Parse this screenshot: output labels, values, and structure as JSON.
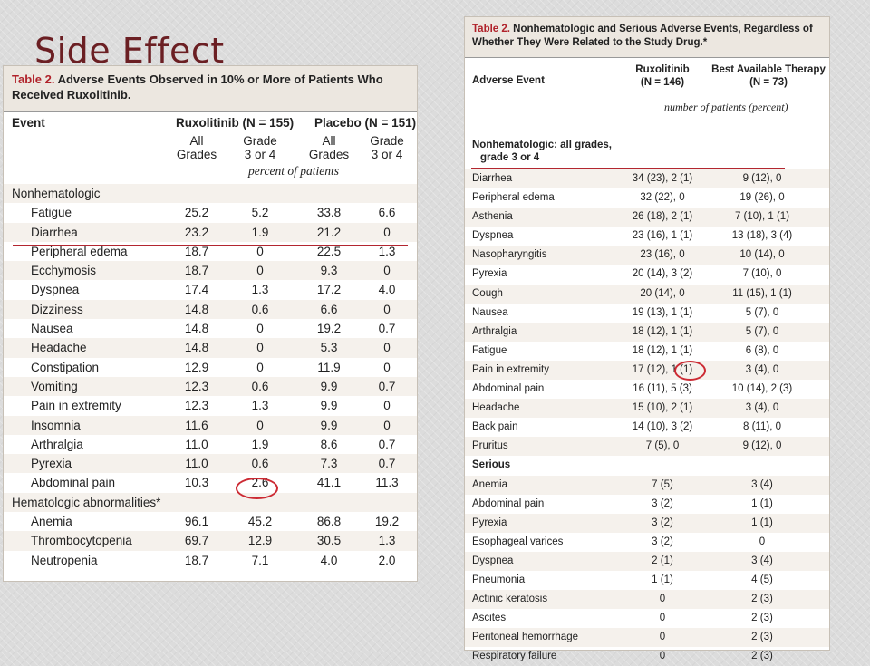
{
  "slide": {
    "title": "Side Effect"
  },
  "table1": {
    "number": "Table 2.",
    "caption": "Adverse Events Observed in 10% or More of Patients Who Received Ruxolitinib.",
    "col_event": "Event",
    "group1": "Ruxolitinib (N = 155)",
    "group2": "Placebo (N = 151)",
    "sub_all_1": "All",
    "sub_all_2": "Grades",
    "sub_g_1": "Grade",
    "sub_g_2": "3 or 4",
    "unit": "percent of patients",
    "section1": "Nonhematologic",
    "section2": "Hematologic abnormalities*",
    "nonhem": [
      {
        "event": "Fatigue",
        "v": [
          "25.2",
          "5.2",
          "33.8",
          "6.6"
        ]
      },
      {
        "event": "Diarrhea",
        "v": [
          "23.2",
          "1.9",
          "21.2",
          "0"
        ]
      },
      {
        "event": "Peripheral edema",
        "v": [
          "18.7",
          "0",
          "22.5",
          "1.3"
        ]
      },
      {
        "event": "Ecchymosis",
        "v": [
          "18.7",
          "0",
          "9.3",
          "0"
        ]
      },
      {
        "event": "Dyspnea",
        "v": [
          "17.4",
          "1.3",
          "17.2",
          "4.0"
        ]
      },
      {
        "event": "Dizziness",
        "v": [
          "14.8",
          "0.6",
          "6.6",
          "0"
        ]
      },
      {
        "event": "Nausea",
        "v": [
          "14.8",
          "0",
          "19.2",
          "0.7"
        ]
      },
      {
        "event": "Headache",
        "v": [
          "14.8",
          "0",
          "5.3",
          "0"
        ]
      },
      {
        "event": "Constipation",
        "v": [
          "12.9",
          "0",
          "11.9",
          "0"
        ]
      },
      {
        "event": "Vomiting",
        "v": [
          "12.3",
          "0.6",
          "9.9",
          "0.7"
        ]
      },
      {
        "event": "Pain in extremity",
        "v": [
          "12.3",
          "1.3",
          "9.9",
          "0"
        ]
      },
      {
        "event": "Insomnia",
        "v": [
          "11.6",
          "0",
          "9.9",
          "0"
        ]
      },
      {
        "event": "Arthralgia",
        "v": [
          "11.0",
          "1.9",
          "8.6",
          "0.7"
        ]
      },
      {
        "event": "Pyrexia",
        "v": [
          "11.0",
          "0.6",
          "7.3",
          "0.7"
        ]
      },
      {
        "event": "Abdominal pain",
        "v": [
          "10.3",
          "2.6",
          "41.1",
          "11.3"
        ]
      }
    ],
    "hem": [
      {
        "event": "Anemia",
        "v": [
          "96.1",
          "45.2",
          "86.8",
          "19.2"
        ]
      },
      {
        "event": "Thrombocytopenia",
        "v": [
          "69.7",
          "12.9",
          "30.5",
          "1.3"
        ]
      },
      {
        "event": "Neutropenia",
        "v": [
          "18.7",
          "7.1",
          "4.0",
          "2.0"
        ]
      }
    ]
  },
  "table2": {
    "number": "Table 2.",
    "caption": "Nonhematologic and Serious Adverse Events, Regardless of Whether They Were Related to the Study Drug.*",
    "col_event": "Adverse Event",
    "group1_l1": "Ruxolitinib",
    "group1_l2": "(N = 146)",
    "group2_l1": "Best Available Therapy",
    "group2_l2": "(N = 73)",
    "unit": "number of patients (percent)",
    "section1_l1": "Nonhematologic: all grades,",
    "section1_l2": "grade 3 or 4",
    "section2": "Serious",
    "nonhem": [
      {
        "event": "Diarrhea",
        "a": "34 (23), 2 (1)",
        "b": "9 (12), 0"
      },
      {
        "event": "Peripheral edema",
        "a": "32 (22), 0",
        "b": "19 (26), 0"
      },
      {
        "event": "Asthenia",
        "a": "26 (18), 2 (1)",
        "b": "7 (10), 1 (1)"
      },
      {
        "event": "Dyspnea",
        "a": "23 (16), 1 (1)",
        "b": "13 (18), 3 (4)"
      },
      {
        "event": "Nasopharyngitis",
        "a": "23 (16), 0",
        "b": "10 (14), 0"
      },
      {
        "event": "Pyrexia",
        "a": "20 (14), 3 (2)",
        "b": "7 (10), 0"
      },
      {
        "event": "Cough",
        "a": "20 (14), 0",
        "b": "11 (15), 1 (1)"
      },
      {
        "event": "Nausea",
        "a": "19 (13), 1 (1)",
        "b": "5 (7), 0"
      },
      {
        "event": "Arthralgia",
        "a": "18 (12), 1 (1)",
        "b": "5 (7), 0"
      },
      {
        "event": "Fatigue",
        "a": "18 (12), 1 (1)",
        "b": "6 (8), 0"
      },
      {
        "event": "Pain in extremity",
        "a": "17 (12), 1 (1)",
        "b": "3 (4), 0"
      },
      {
        "event": "Abdominal pain",
        "a": "16 (11), 5 (3)",
        "b": "10 (14), 2 (3)"
      },
      {
        "event": "Headache",
        "a": "15 (10), 2 (1)",
        "b": "3 (4), 0"
      },
      {
        "event": "Back pain",
        "a": "14 (10), 3 (2)",
        "b": "8 (11), 0"
      },
      {
        "event": "Pruritus",
        "a": "7 (5), 0",
        "b": "9 (12), 0"
      }
    ],
    "serious": [
      {
        "event": "Anemia",
        "a": "7 (5)",
        "b": "3 (4)"
      },
      {
        "event": "Abdominal pain",
        "a": "3 (2)",
        "b": "1 (1)"
      },
      {
        "event": "Pyrexia",
        "a": "3 (2)",
        "b": "1 (1)"
      },
      {
        "event": "Esophageal varices",
        "a": "3 (2)",
        "b": "0"
      },
      {
        "event": "Dyspnea",
        "a": "2 (1)",
        "b": "3 (4)"
      },
      {
        "event": "Pneumonia",
        "a": "1 (1)",
        "b": "4 (5)"
      },
      {
        "event": "Actinic keratosis",
        "a": "0",
        "b": "2 (3)"
      },
      {
        "event": "Ascites",
        "a": "0",
        "b": "2 (3)"
      },
      {
        "event": "Peritoneal hemorrhage",
        "a": "0",
        "b": "2 (3)"
      },
      {
        "event": "Respiratory failure",
        "a": "0",
        "b": "2 (3)"
      }
    ]
  },
  "annotations": {
    "color": "#cc2a33"
  }
}
